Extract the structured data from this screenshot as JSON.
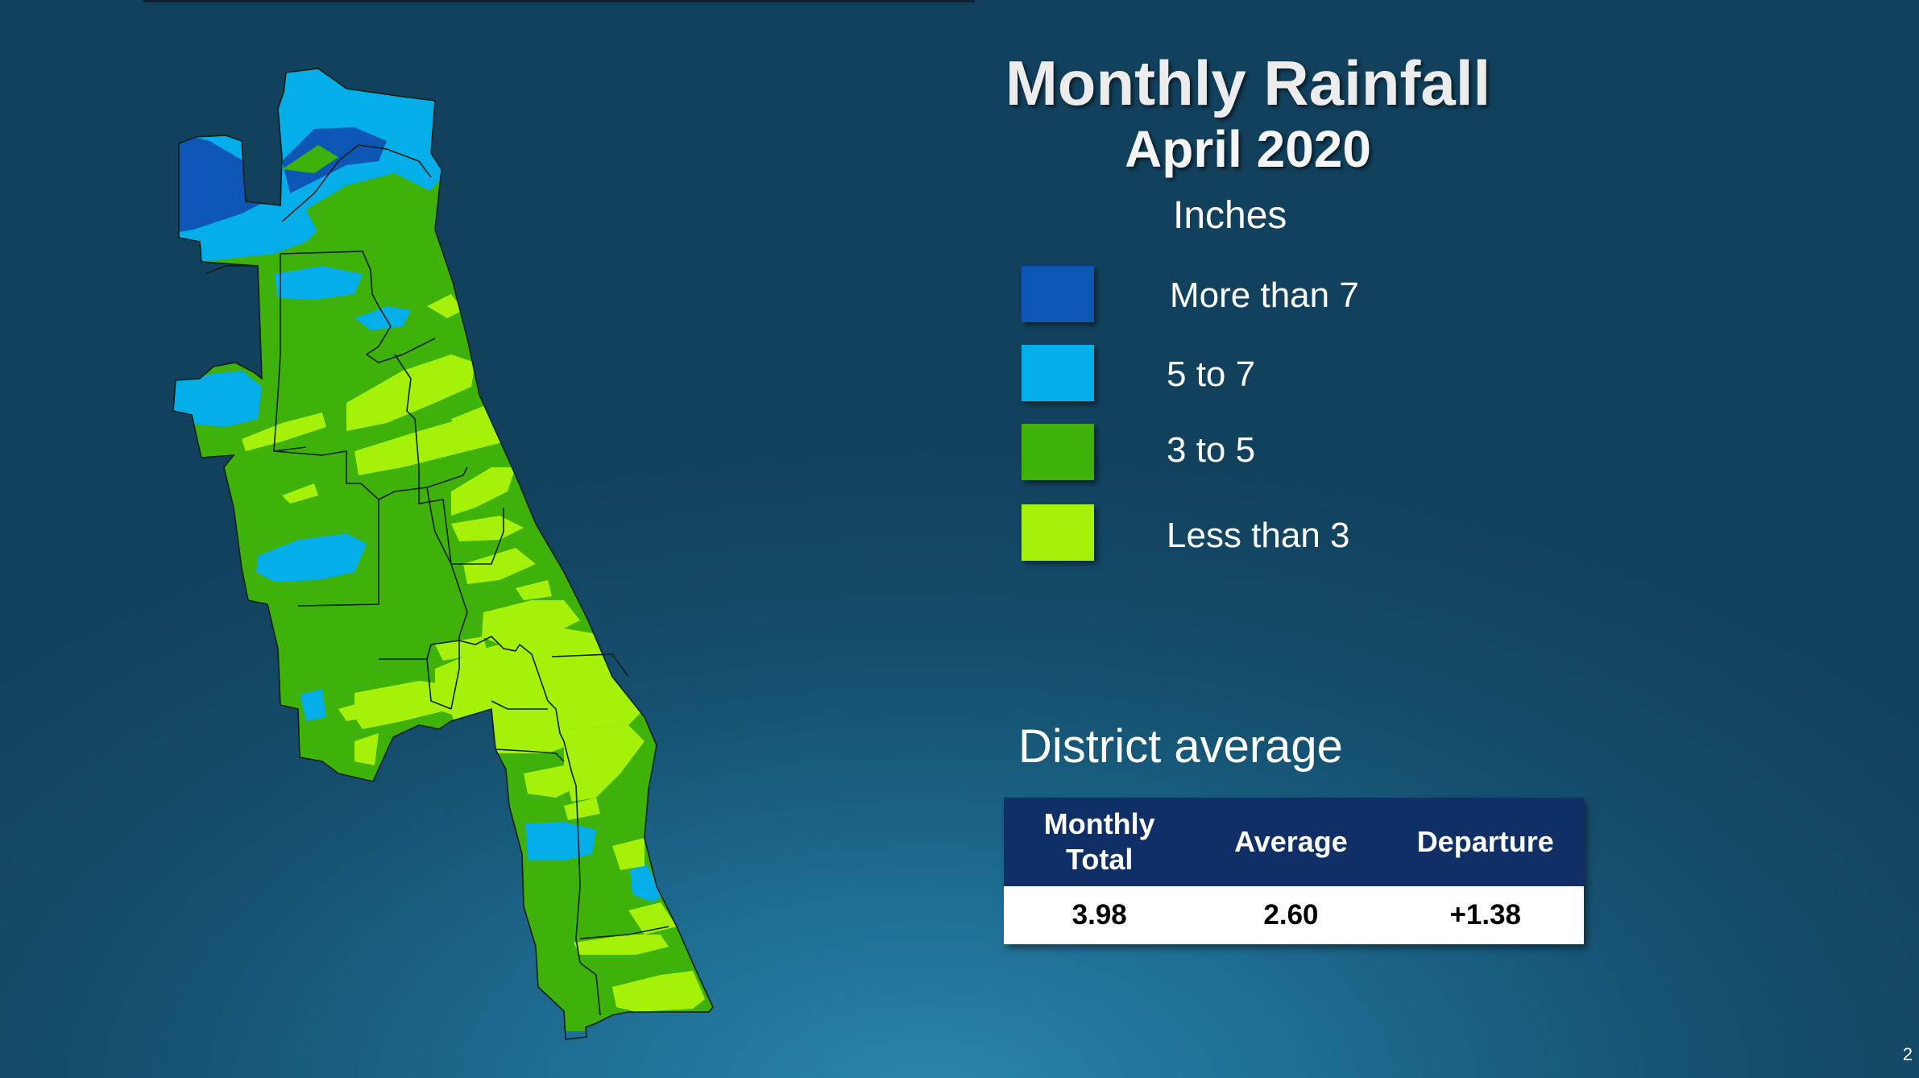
{
  "slide": {
    "title": "Monthly Rainfall",
    "subtitle": "April 2020",
    "page_number": "2"
  },
  "legend": {
    "units": "Inches",
    "items": [
      {
        "label": "More than 7",
        "color": "#0e56b6"
      },
      {
        "label": "5 to 7",
        "color": "#03aee9"
      },
      {
        "label": "3 to 5",
        "color": "#3fb10b"
      },
      {
        "label": "Less than 3",
        "color": "#a6f10a"
      }
    ]
  },
  "district_average": {
    "heading": "District average",
    "headers": [
      "Monthly Total",
      "Average",
      "Departure"
    ],
    "values": [
      "3.98",
      "2.60",
      "+1.38"
    ]
  },
  "map": {
    "description_colors": {
      "boundary": "#0b1f14"
    }
  }
}
